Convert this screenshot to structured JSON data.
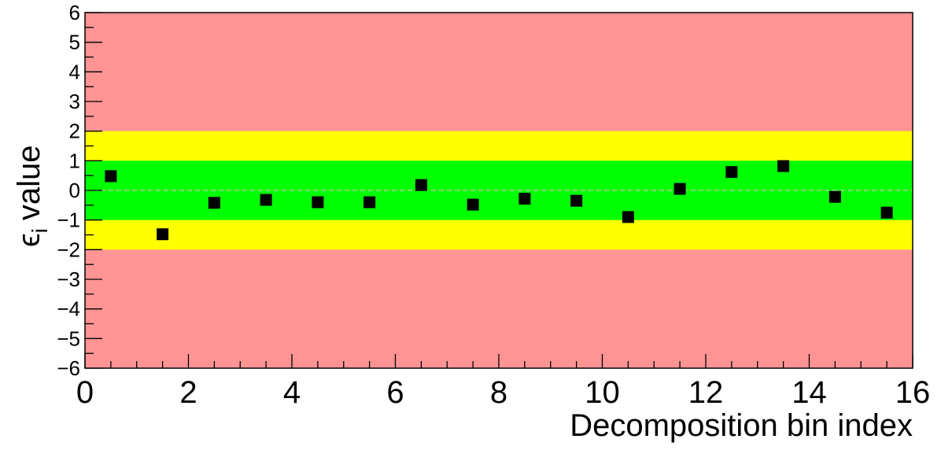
{
  "chart_data": {
    "type": "scatter",
    "title": "",
    "xlabel": "Decomposition bin index",
    "ylabel": "value",
    "ylabel_symbol": "ϵ",
    "ylabel_subscript": "i",
    "xlim": [
      0,
      16
    ],
    "ylim": [
      -6,
      6
    ],
    "x_ticks": [
      0,
      2,
      4,
      6,
      8,
      10,
      12,
      14,
      16
    ],
    "x_tick_labels": [
      "0",
      "2",
      "4",
      "6",
      "8",
      "10",
      "12",
      "14",
      "16"
    ],
    "y_ticks": [
      -6,
      -5,
      -4,
      -3,
      -2,
      -1,
      0,
      1,
      2,
      3,
      4,
      5,
      6
    ],
    "y_tick_labels": [
      "−6",
      "−5",
      "−4",
      "−3",
      "−2",
      "−1",
      "0",
      "1",
      "2",
      "3",
      "4",
      "5",
      "6"
    ],
    "bands": [
      {
        "name": "outer",
        "from": -6,
        "to": 6,
        "color": "#ff9494"
      },
      {
        "name": "2-sigma",
        "from": -2,
        "to": 2,
        "color": "#ffff00"
      },
      {
        "name": "1-sigma",
        "from": -1,
        "to": 1,
        "color": "#00ff00"
      }
    ],
    "zero_line": {
      "value": 0,
      "color": "#a8c8a8",
      "style": "dashed"
    },
    "marker_color": "#000000",
    "x": [
      0.5,
      1.5,
      2.5,
      3.5,
      4.5,
      5.5,
      6.5,
      7.5,
      8.5,
      9.5,
      10.5,
      11.5,
      12.5,
      13.5,
      14.5,
      15.5
    ],
    "y": [
      0.48,
      -1.48,
      -0.42,
      -0.32,
      -0.4,
      -0.4,
      0.18,
      -0.48,
      -0.28,
      -0.35,
      -0.9,
      0.05,
      0.62,
      0.82,
      -0.22,
      -0.75
    ]
  }
}
